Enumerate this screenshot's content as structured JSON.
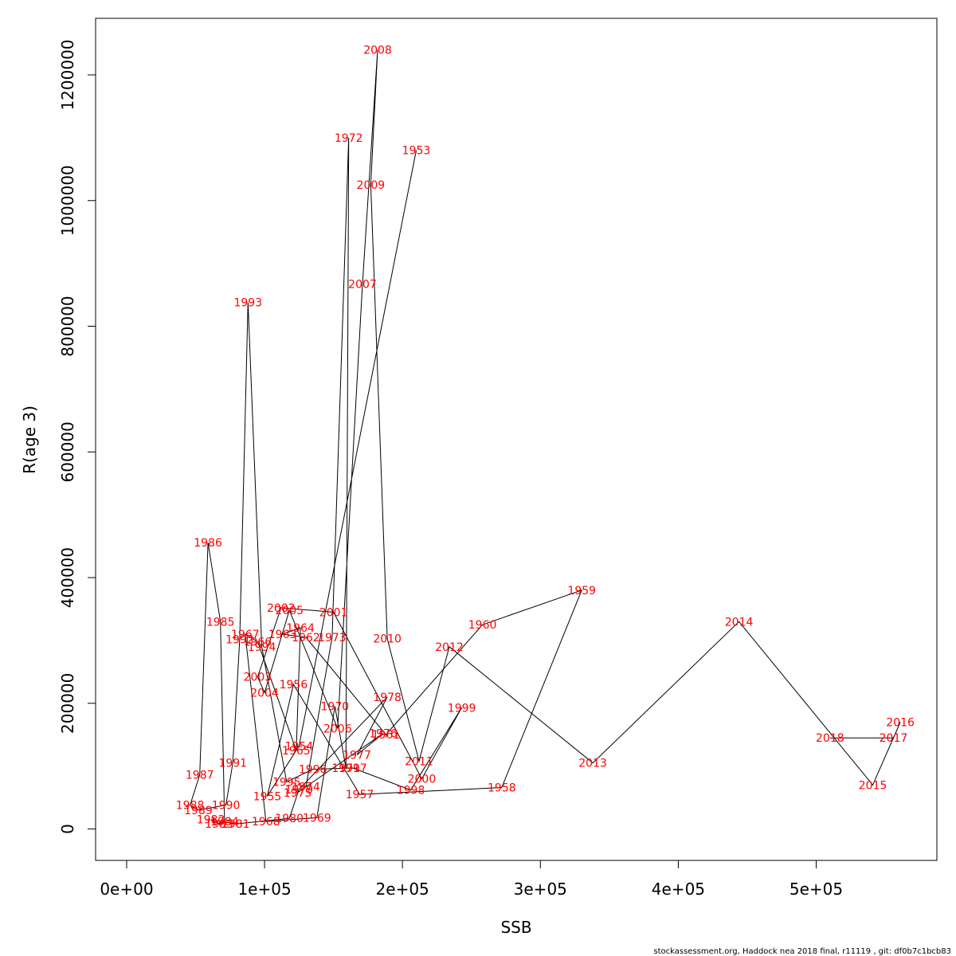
{
  "chart_data": {
    "type": "line",
    "title": "",
    "xlabel": "SSB",
    "ylabel": "R(age 3)",
    "xlim": [
      -22500,
      587500
    ],
    "ylim": [
      -50000,
      1290000
    ],
    "x_ticks": [
      0,
      100000,
      200000,
      300000,
      400000,
      500000
    ],
    "x_tick_labels": [
      "0e+00",
      "1e+05",
      "2e+05",
      "3e+05",
      "4e+05",
      "5e+05"
    ],
    "y_ticks": [
      0,
      200000,
      400000,
      600000,
      800000,
      1000000,
      1200000
    ],
    "y_tick_labels": [
      "0",
      "200000",
      "400000",
      "600000",
      "800000",
      "1000000",
      "1200000"
    ],
    "grid": false,
    "line_color": "#000000",
    "label_color": "#ff0000",
    "points": [
      {
        "year": "1953",
        "ssb": 210000,
        "r": 1080000
      },
      {
        "year": "1954",
        "ssb": 125000,
        "r": 132000
      },
      {
        "year": "1955",
        "ssb": 102000,
        "r": 52000
      },
      {
        "year": "1956",
        "ssb": 121000,
        "r": 230000
      },
      {
        "year": "1957",
        "ssb": 169000,
        "r": 55000
      },
      {
        "year": "1958",
        "ssb": 272000,
        "r": 66000
      },
      {
        "year": "1959",
        "ssb": 330000,
        "r": 380000
      },
      {
        "year": "1960",
        "ssb": 258000,
        "r": 325000
      },
      {
        "year": "1961",
        "ssb": 188000,
        "r": 150000
      },
      {
        "year": "1962",
        "ssb": 130000,
        "r": 305000
      },
      {
        "year": "1963",
        "ssb": 113000,
        "r": 310000
      },
      {
        "year": "1964",
        "ssb": 126000,
        "r": 320000
      },
      {
        "year": "1965",
        "ssb": 123000,
        "r": 125000
      },
      {
        "year": "1966",
        "ssb": 95000,
        "r": 298000
      },
      {
        "year": "1967",
        "ssb": 86000,
        "r": 310000
      },
      {
        "year": "1968",
        "ssb": 101000,
        "r": 12000
      },
      {
        "year": "1969",
        "ssb": 138000,
        "r": 18000
      },
      {
        "year": "1970",
        "ssb": 151000,
        "r": 195000
      },
      {
        "year": "1971",
        "ssb": 159000,
        "r": 97000
      },
      {
        "year": "1972",
        "ssb": 161000,
        "r": 1100000
      },
      {
        "year": "1973",
        "ssb": 149000,
        "r": 305000
      },
      {
        "year": "1974",
        "ssb": 130000,
        "r": 67000
      },
      {
        "year": "1975",
        "ssb": 124000,
        "r": 58000
      },
      {
        "year": "1976",
        "ssb": 186000,
        "r": 152000
      },
      {
        "year": "1977",
        "ssb": 167000,
        "r": 118000
      },
      {
        "year": "1978",
        "ssb": 189000,
        "r": 210000
      },
      {
        "year": "1979",
        "ssb": 125000,
        "r": 63000
      },
      {
        "year": "1980",
        "ssb": 118000,
        "r": 17000
      },
      {
        "year": "1981",
        "ssb": 79000,
        "r": 8000
      },
      {
        "year": "1982",
        "ssb": 61000,
        "r": 15000
      },
      {
        "year": "1983",
        "ssb": 67000,
        "r": 8000
      },
      {
        "year": "1984",
        "ssb": 71000,
        "r": 12000
      },
      {
        "year": "1985",
        "ssb": 68000,
        "r": 330000
      },
      {
        "year": "1986",
        "ssb": 59000,
        "r": 456000
      },
      {
        "year": "1987",
        "ssb": 53000,
        "r": 86000
      },
      {
        "year": "1988",
        "ssb": 46000,
        "r": 38000
      },
      {
        "year": "1989",
        "ssb": 52000,
        "r": 30000
      },
      {
        "year": "1990",
        "ssb": 72000,
        "r": 38000
      },
      {
        "year": "1991",
        "ssb": 77000,
        "r": 105000
      },
      {
        "year": "1992",
        "ssb": 82000,
        "r": 302000
      },
      {
        "year": "1993",
        "ssb": 88000,
        "r": 838000
      },
      {
        "year": "1994",
        "ssb": 98000,
        "r": 290000
      },
      {
        "year": "1995",
        "ssb": 116000,
        "r": 75000
      },
      {
        "year": "1996",
        "ssb": 135000,
        "r": 95000
      },
      {
        "year": "1997",
        "ssb": 164000,
        "r": 97000
      },
      {
        "year": "1998",
        "ssb": 206000,
        "r": 62000
      },
      {
        "year": "1999",
        "ssb": 243000,
        "r": 193000
      },
      {
        "year": "2000",
        "ssb": 214000,
        "r": 80000
      },
      {
        "year": "2001",
        "ssb": 150000,
        "r": 345000
      },
      {
        "year": "2002",
        "ssb": 112000,
        "r": 352000
      },
      {
        "year": "2003",
        "ssb": 95000,
        "r": 242000
      },
      {
        "year": "2004",
        "ssb": 100000,
        "r": 217000
      },
      {
        "year": "2005",
        "ssb": 118000,
        "r": 348000
      },
      {
        "year": "2006",
        "ssb": 153000,
        "r": 160000
      },
      {
        "year": "2007",
        "ssb": 171000,
        "r": 867000
      },
      {
        "year": "2008",
        "ssb": 182000,
        "r": 1240000
      },
      {
        "year": "2009",
        "ssb": 177000,
        "r": 1025000
      },
      {
        "year": "2010",
        "ssb": 189000,
        "r": 303000
      },
      {
        "year": "2011",
        "ssb": 212000,
        "r": 108000
      },
      {
        "year": "2012",
        "ssb": 234000,
        "r": 290000
      },
      {
        "year": "2013",
        "ssb": 338000,
        "r": 105000
      },
      {
        "year": "2014",
        "ssb": 444000,
        "r": 330000
      },
      {
        "year": "2015",
        "ssb": 541000,
        "r": 70000
      },
      {
        "year": "2016",
        "ssb": 561000,
        "r": 170000
      },
      {
        "year": "2017",
        "ssb": 556000,
        "r": 145000
      },
      {
        "year": "2018",
        "ssb": 510000,
        "r": 145000
      }
    ]
  },
  "footer": {
    "text": "stockassessment.org, Haddock  nea  2018  final, r11119 , git: df0b7c1bcb83"
  }
}
